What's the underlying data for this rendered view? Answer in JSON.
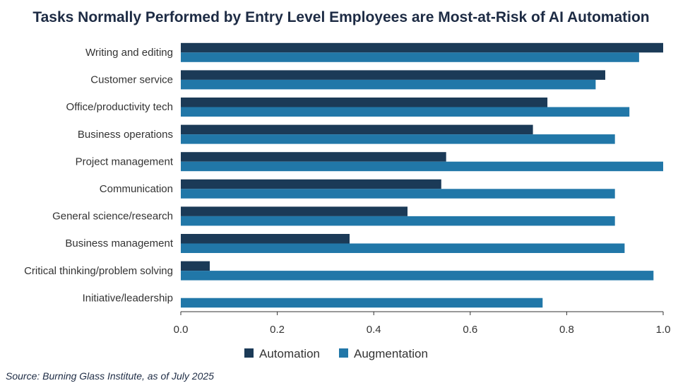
{
  "colors": {
    "automation": "#1b3a57",
    "augmentation": "#2177a8",
    "axis": "#333333",
    "title": "#1d2b44"
  },
  "source": "Source: Burning Glass Institute, as of July 2025",
  "chart_data": {
    "type": "bar",
    "orientation": "horizontal",
    "title": "Tasks Normally Performed by Entry Level Employees are Most-at-Risk of AI Automation",
    "xlabel": "",
    "ylabel": "",
    "xlim": [
      0,
      1
    ],
    "xticks": [
      "0.0",
      "0.2",
      "0.4",
      "0.6",
      "0.8",
      "1.0"
    ],
    "grid": false,
    "legend_position": "bottom-center",
    "categories": [
      "Writing and editing",
      "Customer service",
      "Office/productivity tech",
      "Business operations",
      "Project management",
      "Communication",
      "General science/research",
      "Business management",
      "Critical thinking/problem solving",
      "Initiative/leadership"
    ],
    "series": [
      {
        "name": "Automation",
        "values": [
          1.0,
          0.88,
          0.76,
          0.73,
          0.55,
          0.54,
          0.47,
          0.35,
          0.06,
          0.0
        ]
      },
      {
        "name": "Augmentation",
        "values": [
          0.95,
          0.86,
          0.93,
          0.9,
          1.0,
          0.9,
          0.9,
          0.92,
          0.98,
          0.75
        ]
      }
    ]
  }
}
